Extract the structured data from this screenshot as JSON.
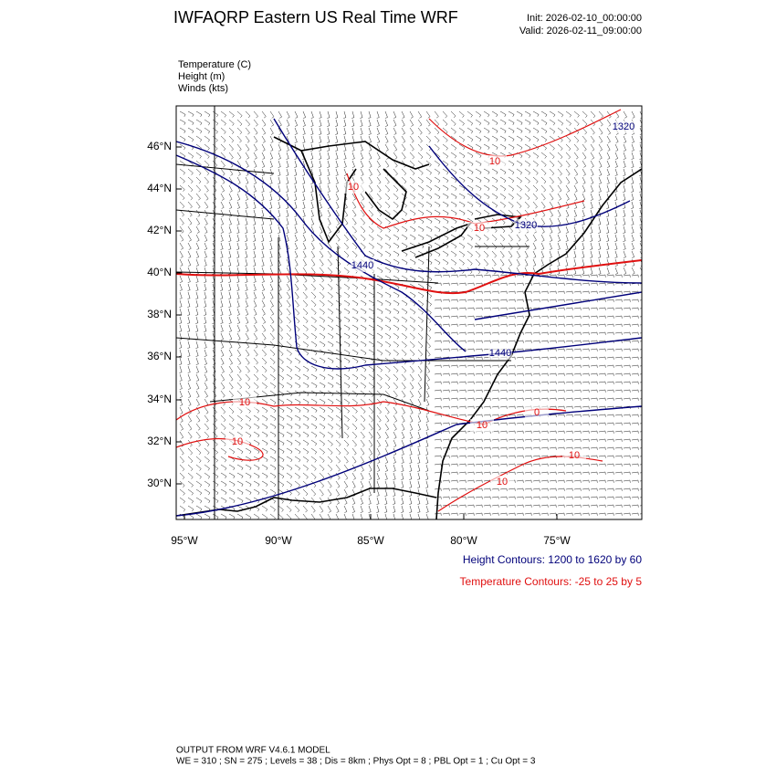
{
  "header": {
    "title": "IWFAQRP Eastern US Real Time WRF",
    "init": "Init: 2026-02-10_00:00:00",
    "valid": "Valid: 2026-02-11_09:00:00"
  },
  "fields": [
    "Temperature   (C)",
    "Height   (m)",
    "Winds   (kts)"
  ],
  "map": {
    "lat_labels": [
      "46°N",
      "44°N",
      "42°N",
      "40°N",
      "38°N",
      "36°N",
      "34°N",
      "32°N",
      "30°N"
    ],
    "lon_labels": [
      "95°W",
      "90°W",
      "85°W",
      "80°W",
      "75°W"
    ],
    "height_contour_labels": [
      "1320",
      "1320",
      "1440",
      "1440"
    ],
    "temperature_contour_labels": [
      "10",
      "10",
      "10",
      "10",
      "10",
      "0",
      "10",
      "10",
      "10"
    ]
  },
  "notes": {
    "height": "Height Contours: 1200 to 1620 by 60",
    "temperature": "Temperature Contours: -25 to 25 by 5"
  },
  "footer": [
    "OUTPUT FROM WRF V4.6.1 MODEL",
    "WE = 310 ; SN = 275 ; Levels = 38 ; Dis = 8km ; Phys Opt = 8 ; PBL Opt = 1 ; Cu Opt = 3"
  ]
}
